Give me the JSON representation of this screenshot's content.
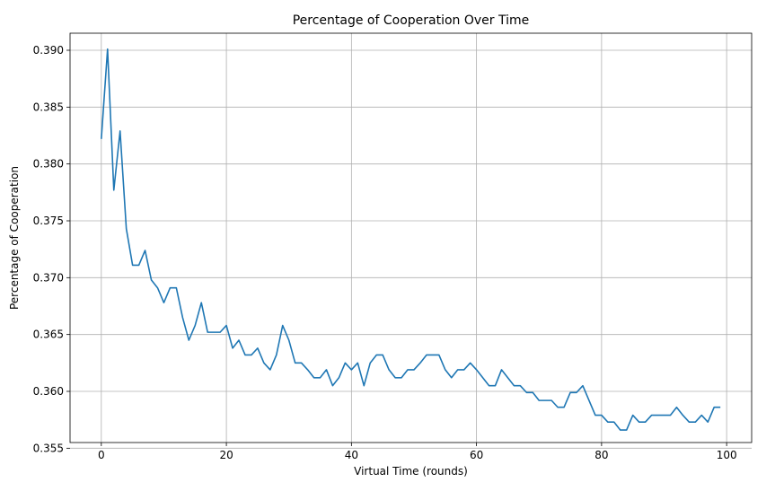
{
  "chart_data": {
    "type": "line",
    "title": "Percentage of Cooperation Over Time",
    "xlabel": "Virtual Time (rounds)",
    "ylabel": "Percentage of Cooperation",
    "xlim": [
      -5,
      104
    ],
    "ylim": [
      0.3555,
      0.3915
    ],
    "xticks": [
      0,
      20,
      40,
      60,
      80,
      100
    ],
    "yticks": [
      0.355,
      0.36,
      0.365,
      0.37,
      0.375,
      0.38,
      0.385,
      0.39
    ],
    "ytick_labels": [
      "0.355",
      "0.360",
      "0.365",
      "0.370",
      "0.375",
      "0.380",
      "0.385",
      "0.390"
    ],
    "grid": true,
    "series": [
      {
        "color": "#1f77b4",
        "x": [
          0,
          1,
          2,
          3,
          4,
          5,
          6,
          7,
          8,
          9,
          10,
          11,
          12,
          13,
          14,
          15,
          16,
          17,
          18,
          19,
          20,
          21,
          22,
          23,
          24,
          25,
          26,
          27,
          28,
          29,
          30,
          31,
          32,
          33,
          34,
          35,
          36,
          37,
          38,
          39,
          40,
          41,
          42,
          43,
          44,
          45,
          46,
          47,
          48,
          49,
          50,
          51,
          52,
          53,
          54,
          55,
          56,
          57,
          58,
          59,
          60,
          61,
          62,
          63,
          64,
          65,
          66,
          67,
          68,
          69,
          70,
          71,
          72,
          73,
          74,
          75,
          76,
          77,
          78,
          79,
          80,
          81,
          82,
          83,
          84,
          85,
          86,
          87,
          88,
          89,
          90,
          91,
          92,
          93,
          94,
          95,
          96,
          97,
          98,
          99
        ],
        "y": [
          0.3822,
          0.3901,
          0.3777,
          0.3829,
          0.3743,
          0.3711,
          0.3711,
          0.3724,
          0.3698,
          0.3691,
          0.3678,
          0.3691,
          0.3691,
          0.3665,
          0.3645,
          0.3658,
          0.3678,
          0.3652,
          0.3652,
          0.3652,
          0.3658,
          0.3638,
          0.3645,
          0.3632,
          0.3632,
          0.3638,
          0.3625,
          0.3619,
          0.3632,
          0.3658,
          0.3645,
          0.3625,
          0.3625,
          0.3619,
          0.3612,
          0.3612,
          0.3619,
          0.3605,
          0.3612,
          0.3625,
          0.3619,
          0.3625,
          0.3605,
          0.3625,
          0.3632,
          0.3632,
          0.3619,
          0.3612,
          0.3612,
          0.3619,
          0.3619,
          0.3625,
          0.3632,
          0.3632,
          0.3632,
          0.3619,
          0.3612,
          0.3619,
          0.3619,
          0.3625,
          0.3619,
          0.3612,
          0.3605,
          0.3605,
          0.3619,
          0.3612,
          0.3605,
          0.3605,
          0.3599,
          0.3599,
          0.3592,
          0.3592,
          0.3592,
          0.3586,
          0.3586,
          0.3599,
          0.3599,
          0.3605,
          0.3592,
          0.3579,
          0.3579,
          0.3573,
          0.3573,
          0.3566,
          0.3566,
          0.3579,
          0.3573,
          0.3573,
          0.3579,
          0.3579,
          0.3579,
          0.3579,
          0.3586,
          0.3579,
          0.3573,
          0.3573,
          0.3579,
          0.3573,
          0.3586,
          0.3586
        ]
      }
    ]
  }
}
